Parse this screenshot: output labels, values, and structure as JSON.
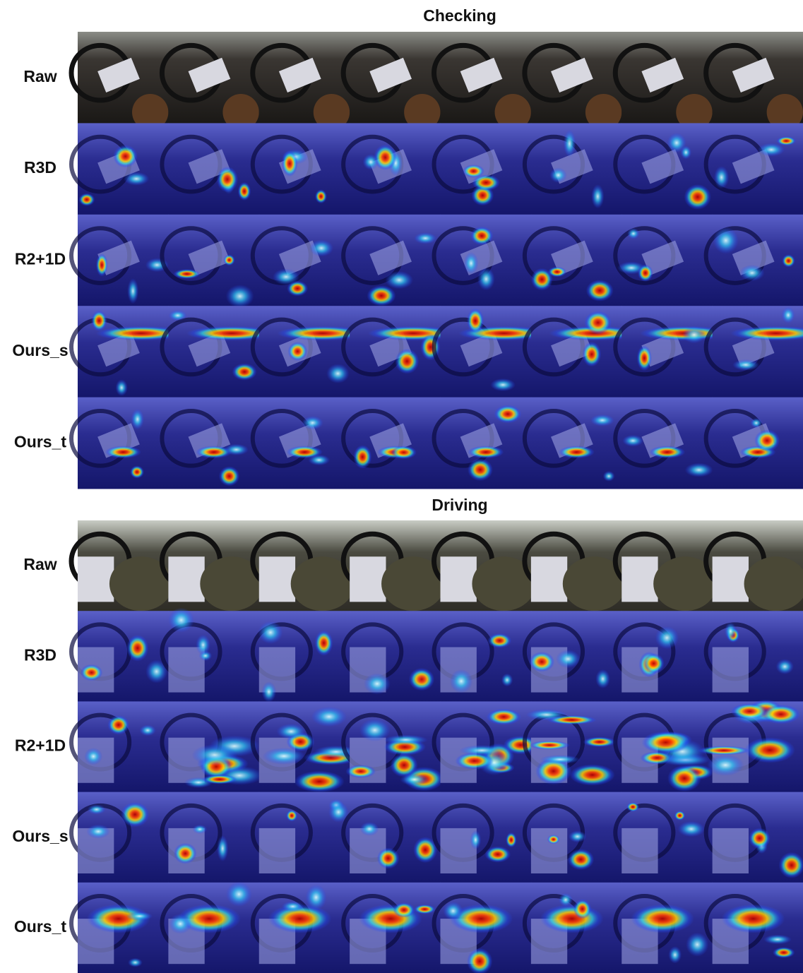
{
  "sections": [
    {
      "title": "Checking",
      "rows": [
        "Raw",
        "R3D",
        "R2+1D",
        "Ours_s",
        "Ours_t"
      ]
    },
    {
      "title": "Driving",
      "rows": [
        "Raw",
        "R3D",
        "R2+1D",
        "Ours_s",
        "Ours_t"
      ]
    }
  ]
}
